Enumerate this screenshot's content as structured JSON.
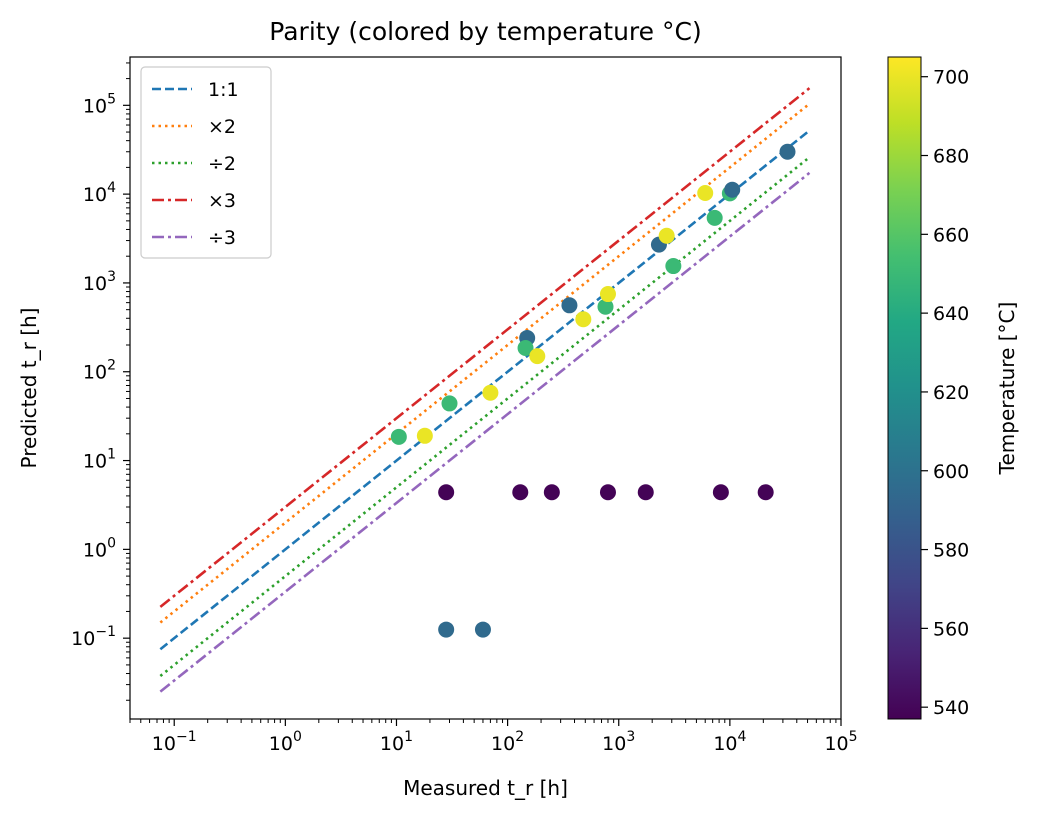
{
  "chart_data": {
    "type": "scatter",
    "title": "Parity (colored by temperature °C)",
    "xlabel": "Measured t_r [h]",
    "ylabel": "Predicted t_r [h]",
    "xscale": "log",
    "yscale": "log",
    "xlim": [
      0.04,
      100000
    ],
    "ylim": [
      0.0123,
      350000
    ],
    "x_ticks": [
      {
        "value": 0.1,
        "label": "10",
        "exp": "−1"
      },
      {
        "value": 1,
        "label": "10",
        "exp": "0"
      },
      {
        "value": 10,
        "label": "10",
        "exp": "1"
      },
      {
        "value": 100,
        "label": "10",
        "exp": "2"
      },
      {
        "value": 1000,
        "label": "10",
        "exp": "3"
      },
      {
        "value": 10000,
        "label": "10",
        "exp": "4"
      },
      {
        "value": 100000,
        "label": "10",
        "exp": "5"
      }
    ],
    "y_ticks": [
      {
        "value": 0.1,
        "label": "10",
        "exp": "−1"
      },
      {
        "value": 1,
        "label": "10",
        "exp": "0"
      },
      {
        "value": 10,
        "label": "10",
        "exp": "1"
      },
      {
        "value": 100,
        "label": "10",
        "exp": "2"
      },
      {
        "value": 1000,
        "label": "10",
        "exp": "3"
      },
      {
        "value": 10000,
        "label": "10",
        "exp": "4"
      },
      {
        "value": 100000,
        "label": "10",
        "exp": "5"
      }
    ],
    "grid": false,
    "legend_placement": "top-left",
    "reference_lines": [
      {
        "name": "1:1",
        "factor": 1,
        "style": "dashed",
        "color": "#1f77b4",
        "x_range": [
          0.075,
          52000
        ]
      },
      {
        "name": "×2",
        "factor": 2,
        "style": "dotted",
        "color": "#ff7f0e",
        "x_range": [
          0.075,
          52000
        ]
      },
      {
        "name": "÷2",
        "factor": 0.5,
        "style": "dotted",
        "color": "#2ca02c",
        "x_range": [
          0.075,
          52000
        ]
      },
      {
        "name": "×3",
        "factor": 3,
        "style": "dashdot",
        "color": "#d62728",
        "x_range": [
          0.075,
          52000
        ]
      },
      {
        "name": "÷3",
        "factor": 0.3333,
        "style": "dashdot",
        "color": "#9467bd",
        "x_range": [
          0.075,
          52000
        ]
      }
    ],
    "points": [
      {
        "x": 10.5,
        "y": 18.5,
        "t": 650
      },
      {
        "x": 18,
        "y": 19,
        "t": 700
      },
      {
        "x": 30,
        "y": 44,
        "t": 650
      },
      {
        "x": 70,
        "y": 58,
        "t": 700
      },
      {
        "x": 150,
        "y": 240,
        "t": 595
      },
      {
        "x": 145,
        "y": 185,
        "t": 650
      },
      {
        "x": 185,
        "y": 150,
        "t": 700
      },
      {
        "x": 360,
        "y": 560,
        "t": 595
      },
      {
        "x": 480,
        "y": 390,
        "t": 700
      },
      {
        "x": 760,
        "y": 540,
        "t": 650
      },
      {
        "x": 800,
        "y": 750,
        "t": 700
      },
      {
        "x": 2300,
        "y": 2700,
        "t": 595
      },
      {
        "x": 2700,
        "y": 3400,
        "t": 700
      },
      {
        "x": 3100,
        "y": 1550,
        "t": 650
      },
      {
        "x": 6000,
        "y": 10300,
        "t": 700
      },
      {
        "x": 7300,
        "y": 5400,
        "t": 650
      },
      {
        "x": 10000,
        "y": 10200,
        "t": 650
      },
      {
        "x": 10500,
        "y": 11200,
        "t": 595
      },
      {
        "x": 33000,
        "y": 30000,
        "t": 595
      },
      {
        "x": 28,
        "y": 4.4,
        "t": 538
      },
      {
        "x": 130,
        "y": 4.4,
        "t": 538
      },
      {
        "x": 250,
        "y": 4.4,
        "t": 538
      },
      {
        "x": 800,
        "y": 4.4,
        "t": 538
      },
      {
        "x": 1750,
        "y": 4.4,
        "t": 538
      },
      {
        "x": 8300,
        "y": 4.4,
        "t": 538
      },
      {
        "x": 21000,
        "y": 4.4,
        "t": 538
      },
      {
        "x": 28,
        "y": 0.125,
        "t": 595
      },
      {
        "x": 60,
        "y": 0.125,
        "t": 595
      }
    ],
    "colorbar": {
      "label": "Temperature [°C]",
      "colormap": "viridis",
      "vmin": 537,
      "vmax": 705,
      "ticks": [
        540,
        560,
        580,
        600,
        620,
        640,
        660,
        680,
        700
      ]
    }
  }
}
